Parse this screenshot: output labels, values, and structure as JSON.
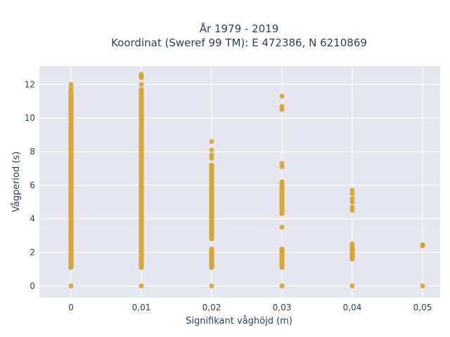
{
  "chart_data": {
    "type": "scatter",
    "title_line1": "År 1979 - 2019",
    "title_line2": "Koordinat (Sweref 99 TM): E 472386, N 6210869",
    "xlabel": "Signifikant våghöjd (m)",
    "ylabel": "Vågperiod (s)",
    "xlim": [
      -0.0045,
      0.0525
    ],
    "ylim": [
      -0.7,
      13.1
    ],
    "x_ticks": [
      0,
      0.01,
      0.02,
      0.03,
      0.04,
      0.05
    ],
    "x_tick_labels": [
      "0",
      "0,01",
      "0,02",
      "0,03",
      "0,04",
      "0,05"
    ],
    "y_ticks": [
      0,
      2,
      4,
      6,
      8,
      10,
      12
    ],
    "y_tick_labels": [
      "0",
      "2",
      "4",
      "6",
      "8",
      "10",
      "12"
    ],
    "grid": true,
    "marker_color": "#D4A020",
    "plot_background": "#E5E6F0",
    "columns": [
      {
        "x": 0,
        "ranges": [
          [
            1.1,
            11.6
          ]
        ],
        "points": [
          0,
          11.8,
          12.0
        ]
      },
      {
        "x": 0.01,
        "ranges": [
          [
            1.1,
            11.7
          ]
        ],
        "points": [
          0,
          12.0,
          12.4,
          12.5,
          12.6
        ]
      },
      {
        "x": 0.02,
        "ranges": [
          [
            1.1,
            2.2
          ],
          [
            2.8,
            7.2
          ]
        ],
        "points": [
          0,
          7.6,
          7.8,
          8.1,
          8.6
        ]
      },
      {
        "x": 0.03,
        "ranges": [
          [
            1.1,
            2.2
          ],
          [
            4.3,
            6.2
          ]
        ],
        "points": [
          0,
          3.5,
          7.1,
          7.3,
          10.5,
          10.7,
          11.3
        ]
      },
      {
        "x": 0.04,
        "ranges": [
          [
            1.6,
            2.5
          ]
        ],
        "points": [
          0,
          4.5,
          4.7,
          5.0,
          5.2,
          5.5,
          5.7
        ]
      },
      {
        "x": 0.05,
        "ranges": [],
        "points": [
          0,
          2.4,
          2.45
        ]
      }
    ]
  }
}
